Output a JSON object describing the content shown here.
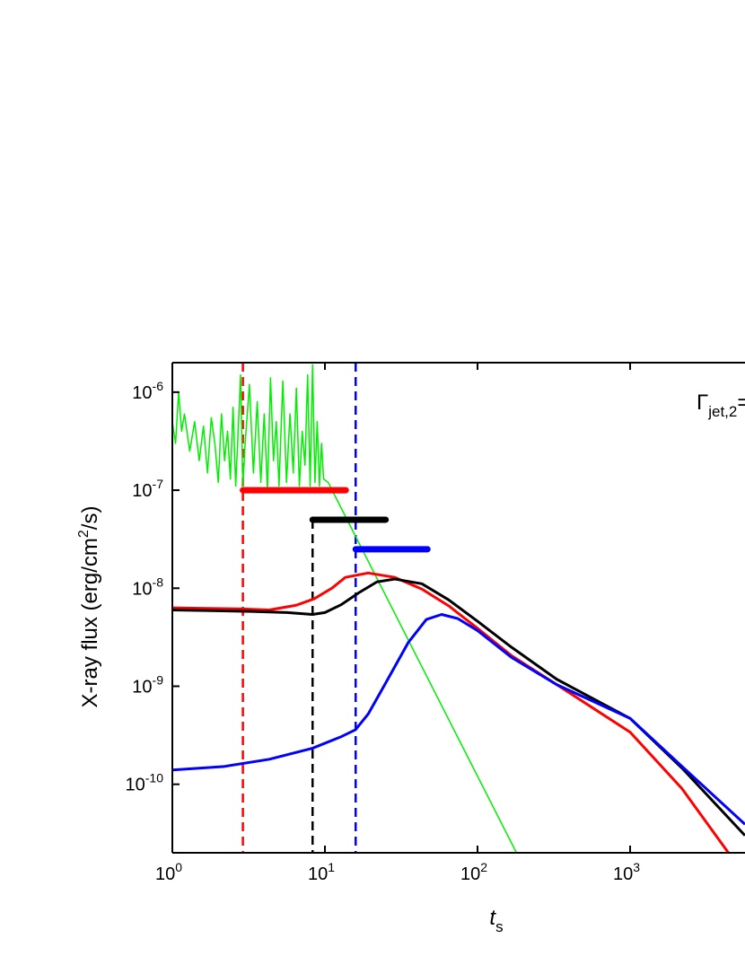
{
  "chart_data": {
    "type": "line",
    "xscale": "log",
    "yscale": "log",
    "xlabel": [
      "t",
      "s"
    ],
    "ylabel": [
      "X-ray flux (erg/cm",
      "2",
      "/s)"
    ],
    "annotation": [
      "Γ",
      "jet,2",
      "="
    ],
    "xlim": [
      1,
      5660
    ],
    "ylim": [
      2e-11,
      2e-06
    ],
    "xticks": [
      {
        "value": 1,
        "label": "10",
        "exponent": "0"
      },
      {
        "value": 10,
        "label": "10",
        "exponent": "1"
      },
      {
        "value": 100,
        "label": "10",
        "exponent": "2"
      },
      {
        "value": 1000,
        "label": "10",
        "exponent": "3"
      }
    ],
    "yticks": [
      {
        "value": 1e-10,
        "label": "10",
        "exponent": "-10"
      },
      {
        "value": 1e-09,
        "label": "10",
        "exponent": "-9"
      },
      {
        "value": 1e-08,
        "label": "10",
        "exponent": "-8"
      },
      {
        "value": 1e-07,
        "label": "10",
        "exponent": "-7"
      },
      {
        "value": 1e-06,
        "label": "10",
        "exponent": "-6"
      }
    ],
    "series": [
      {
        "color": "#00ee00",
        "width": 1.5,
        "x": [
          1,
          1.05,
          1.1,
          1.15,
          1.2,
          1.3,
          1.4,
          1.5,
          1.6,
          1.7,
          1.8,
          1.9,
          2.0,
          2.1,
          2.2,
          2.3,
          2.4,
          2.5,
          2.6,
          2.7,
          2.8,
          2.9,
          3.0,
          3.2,
          3.4,
          3.6,
          3.8,
          4.0,
          4.2,
          4.4,
          4.6,
          4.8,
          5.0,
          5.3,
          5.6,
          5.9,
          6.2,
          6.5,
          6.8,
          7.1,
          7.4,
          7.7,
          8.0,
          8.3,
          8.6,
          8.9,
          9.2,
          9.5,
          9.8,
          10.5,
          180
        ],
        "values": [
          5e-07,
          3e-07,
          1e-06,
          4e-07,
          6e-07,
          2.5e-07,
          5e-07,
          2e-07,
          4.5e-07,
          1.5e-07,
          5.5e-07,
          3e-07,
          1.2e-07,
          6e-07,
          2e-07,
          4e-07,
          1.3e-07,
          7e-07,
          1.1e-07,
          4e-07,
          1.5e-06,
          1.1e-07,
          3e-07,
          1.2e-06,
          1.5e-07,
          8e-07,
          1.2e-07,
          6e-07,
          1e-07,
          1.4e-06,
          2e-07,
          5e-07,
          1.1e-07,
          1.3e-06,
          1.2e-07,
          6e-07,
          1.5e-07,
          1.1e-06,
          1.1e-07,
          4e-07,
          1.8e-07,
          1.5e-06,
          1.1e-07,
          1.9e-06,
          1.2e-07,
          5e-07,
          1.1e-07,
          3e-07,
          1.3e-07,
          1.2e-07,
          2e-11
        ]
      },
      {
        "color": "#ff0000",
        "width": 3,
        "x": [
          1,
          2.88,
          4.32,
          6.48,
          8.5,
          11.1,
          13.6,
          19.2,
          28.7,
          43.2,
          64.8,
          100,
          167,
          330,
          1000,
          2190,
          4440
        ],
        "values": [
          6.3e-09,
          6.15e-09,
          6e-09,
          6.7e-09,
          7.8e-09,
          1e-08,
          1.29e-08,
          1.43e-08,
          1.29e-08,
          9.8e-09,
          6.6e-09,
          3.9e-09,
          2.05e-09,
          1.04e-09,
          3.4e-10,
          9e-11,
          1.97e-11
        ]
      },
      {
        "color": "#000000",
        "width": 3,
        "x": [
          1,
          3.3,
          5.66,
          8.28,
          10,
          12.8,
          16.7,
          21.9,
          28.7,
          43.2,
          64.8,
          100,
          167,
          330,
          1000,
          2190,
          5660
        ],
        "values": [
          6e-09,
          5.8e-09,
          5.65e-09,
          5.4e-09,
          5.65e-09,
          6.8e-09,
          9e-09,
          1.16e-08,
          1.24e-08,
          1.11e-08,
          7.6e-09,
          4.6e-09,
          2.5e-09,
          1.18e-09,
          4.7e-10,
          1.46e-10,
          3e-11
        ]
      },
      {
        "color": "#0000ff",
        "width": 3,
        "x": [
          1,
          2.19,
          4.32,
          8.28,
          12.8,
          15.85,
          19.2,
          25.1,
          35.2,
          46.2,
          58.2,
          74.3,
          100,
          167,
          330,
          1000,
          2190,
          5660
        ],
        "values": [
          1.4e-10,
          1.52e-10,
          1.8e-10,
          2.33e-10,
          3.06e-10,
          3.6e-10,
          5.2e-10,
          1.09e-09,
          2.8e-09,
          4.8e-09,
          5.4e-09,
          4.9e-09,
          3.7e-09,
          1.97e-09,
          1.04e-09,
          4.7e-10,
          1.52e-10,
          3.9e-11
        ]
      }
    ],
    "segments": [
      {
        "color": "#ff0000",
        "x": [
          2.9,
          13.7
        ],
        "y": 1e-07
      },
      {
        "color": "#000000",
        "x": [
          8.3,
          25
        ],
        "y": 5e-08
      },
      {
        "color": "#0000ff",
        "x": [
          15.9,
          47
        ],
        "y": 2.5e-08
      }
    ],
    "vlines": [
      {
        "color": "#ff0000",
        "x": 2.9,
        "y_top": 2e-06
      },
      {
        "color": "#000000",
        "x": 8.3,
        "y_top": 5e-08
      },
      {
        "color": "#0000ff",
        "x": 15.9,
        "y_top": 2e-06
      }
    ]
  }
}
